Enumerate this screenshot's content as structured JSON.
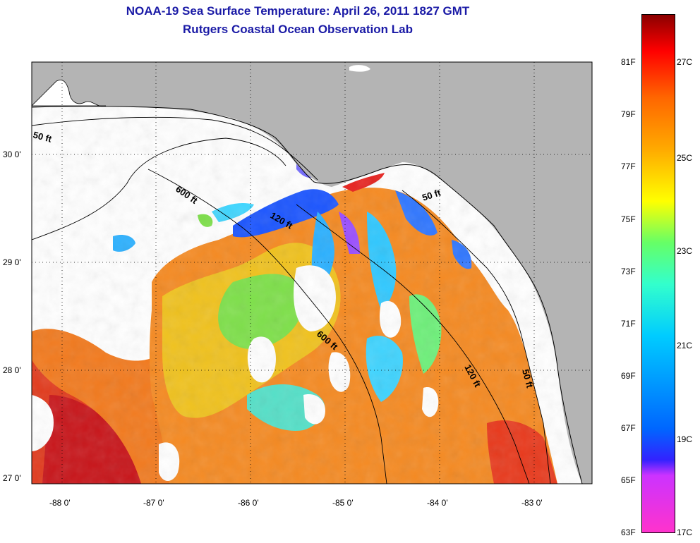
{
  "title_line1": "NOAA-19 Sea Surface Temperature:  April 26, 2011 1827 GMT",
  "title_line2": "Rutgers Coastal Ocean Observation Lab",
  "axes": {
    "lon_ticks": [
      "-88 0'",
      "-87 0'",
      "-86 0'",
      "-85 0'",
      "-84 0'",
      "-83 0'"
    ],
    "lat_ticks": [
      "30 0'",
      "29 0'",
      "28 0'",
      "27 0'"
    ]
  },
  "depth_labels": [
    "50 ft",
    "600 ft",
    "120 ft",
    "50 ft",
    "600 ft",
    "120 ft",
    "50 ft"
  ],
  "colorbar": {
    "fahrenheit": [
      "81F",
      "79F",
      "77F",
      "75F",
      "73F",
      "71F",
      "69F",
      "67F",
      "65F",
      "63F"
    ],
    "celsius": [
      "27C",
      "25C",
      "23C",
      "21C",
      "19C",
      "17C"
    ]
  },
  "colors": {
    "land": "#b4b4b4",
    "no_data": "#ffffff",
    "title": "#1a1aa6"
  }
}
